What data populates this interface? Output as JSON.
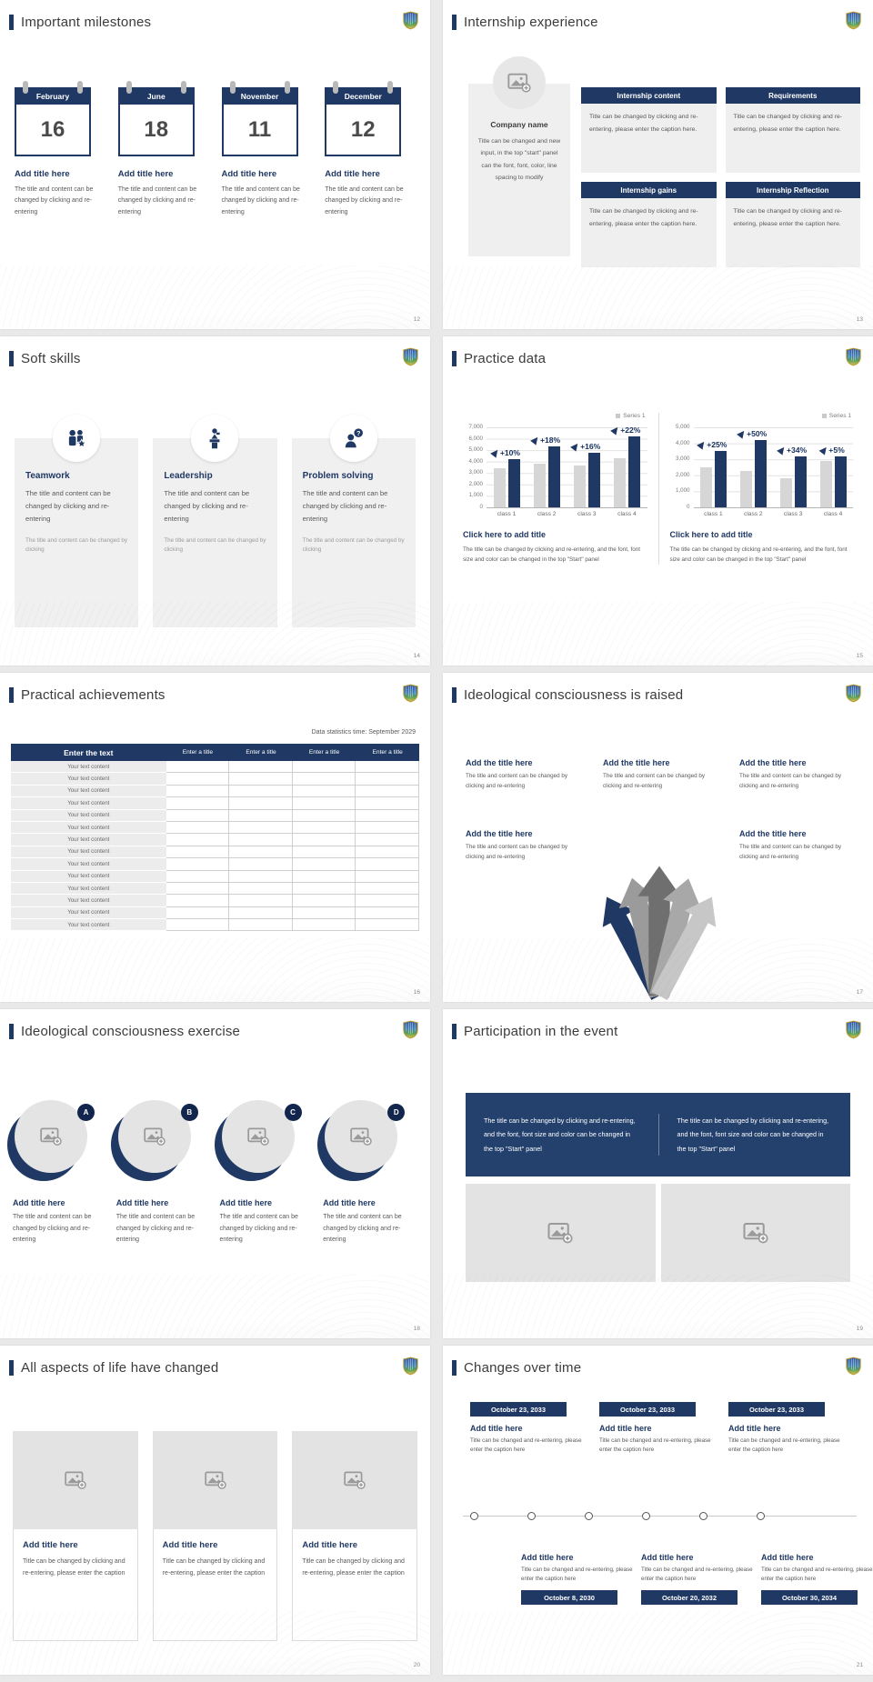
{
  "page": {
    "background_color": "#e9e9e9",
    "slide_background": "#ffffff",
    "accent_navy": "#1f3864",
    "body_text_gray": "#595959",
    "bar_gray_color": "#d6d6d6"
  },
  "logo": {
    "name": "university-crest",
    "colors": [
      "#33539e",
      "#58a05a",
      "#e3c54e"
    ]
  },
  "slides": [
    {
      "title": "Important milestones",
      "page_number": "12",
      "calendars": [
        {
          "month": "February",
          "day": "16",
          "heading": "Add title here",
          "body": "The title and content can be changed by clicking and re-entering"
        },
        {
          "month": "June",
          "day": "18",
          "heading": "Add title here",
          "body": "The title and content can be changed by clicking and re-entering"
        },
        {
          "month": "November",
          "day": "11",
          "heading": "Add title here",
          "body": "The title and content can be changed by clicking and re-entering"
        },
        {
          "month": "December",
          "day": "12",
          "heading": "Add title here",
          "body": "The title and content can be changed by clicking and re-entering"
        }
      ]
    },
    {
      "title": "Internship experience",
      "page_number": "13",
      "company": {
        "name": "Company name",
        "body": "Title can be changed and new input, in the top \"start\" panel can the font, font, color, line spacing to modify"
      },
      "boxes": [
        {
          "header": "Internship content",
          "body": "Title can be changed by clicking and re-entering, please enter the caption here."
        },
        {
          "header": "Requirements",
          "body": "Title can be changed by clicking and re-entering, please enter the caption here."
        },
        {
          "header": "Internship gains",
          "body": "Title can be changed by clicking and re-entering, please enter the caption here."
        },
        {
          "header": "Internship Reflection",
          "body": "Title can be changed by clicking and re-entering, please enter the caption here."
        }
      ]
    },
    {
      "title": "Soft skills",
      "page_number": "14",
      "cards": [
        {
          "icon": "teamwork-icon",
          "heading": "Teamwork",
          "body": "The title and content can be changed by clicking and re-entering",
          "footer": "The title and content can be changed by clicking"
        },
        {
          "icon": "leadership-icon",
          "heading": "Leadership",
          "body": "The title and content can be changed by clicking and re-entering",
          "footer": "The title and content can be changed by clicking"
        },
        {
          "icon": "problem-solving-icon",
          "heading": "Problem solving",
          "body": "The title and content can be changed by clicking and re-entering",
          "footer": "The title and content can be changed by clicking"
        }
      ]
    },
    {
      "title": "Practice data",
      "page_number": "15",
      "charts": [
        {
          "caption_title": "Click here to add title",
          "caption_body": "The title can be changed by clicking and re-entering, and the font, font size and color can be changed in the top \"Start\" panel"
        },
        {
          "caption_title": "Click here to add title",
          "caption_body": "The title can be changed by clicking and re-entering, and the font, font size and color can be changed in the top \"Start\" panel"
        }
      ]
    },
    {
      "title": "Practical achievements",
      "page_number": "16",
      "statistics_caption": "Data statistics time: September 2029",
      "table": {
        "headers": [
          "Enter the text",
          "Enter a title",
          "Enter a title",
          "Enter a title",
          "Enter a title"
        ],
        "rows": [
          "Your text content",
          "Your text content",
          "Your text content",
          "Your text content",
          "Your text content",
          "Your text content",
          "Your text content",
          "Your text content",
          "Your text content",
          "Your text content",
          "Your text content",
          "Your text content",
          "Your text content",
          "Your text content"
        ]
      }
    },
    {
      "title": "Ideological consciousness is raised",
      "page_number": "17",
      "blocks": [
        {
          "heading": "Add the title here",
          "body": "The title and content can be changed by clicking and re-entering"
        },
        {
          "heading": "Add the title here",
          "body": "The title and content can be changed by clicking and re-entering"
        },
        {
          "heading": "Add the title here",
          "body": "The title and content can be changed by clicking and re-entering"
        },
        {
          "heading": "Add the title here",
          "body": "The title and content can be changed by clicking and re-entering"
        },
        {
          "heading": "Add the title here",
          "body": "The title and content can be changed by clicking and re-entering"
        }
      ]
    },
    {
      "title": "Ideological consciousness exercise",
      "page_number": "18",
      "items": [
        {
          "badge": "A",
          "heading": "Add title here",
          "body": "The title and content can be changed by clicking and re-entering"
        },
        {
          "badge": "B",
          "heading": "Add title here",
          "body": "The title and content can be changed by clicking and re-entering"
        },
        {
          "badge": "C",
          "heading": "Add title here",
          "body": "The title and content can be changed by clicking and re-entering"
        },
        {
          "badge": "D",
          "heading": "Add title here",
          "body": "The title and content can be changed by clicking and re-entering"
        }
      ]
    },
    {
      "title": "Participation in the event",
      "page_number": "19",
      "banner": {
        "left": "The title can be changed by clicking and re-entering, and the font, font size and color can be changed in the top \"Start\" panel",
        "right": "The title can be changed by clicking and re-entering, and the font, font size and color can be changed in the top \"Start\" panel"
      }
    },
    {
      "title": "All aspects of life have changed",
      "page_number": "20",
      "cards": [
        {
          "heading": "Add title here",
          "body": "Title can be changed by clicking and re-entering, please enter the caption"
        },
        {
          "heading": "Add title here",
          "body": "Title can be changed by clicking and re-entering, please enter the caption"
        },
        {
          "heading": "Add title here",
          "body": "Title can be changed by clicking and re-entering, please enter the caption"
        }
      ]
    },
    {
      "title": "Changes over time",
      "page_number": "21",
      "top_items": [
        {
          "date": "October 23, 2033",
          "heading": "Add title here",
          "body": "Title can be changed and re-entering, please enter the caption here"
        },
        {
          "date": "October 23, 2033",
          "heading": "Add title here",
          "body": "Title can be changed and re-entering, please enter the caption here"
        },
        {
          "date": "October 23, 2033",
          "heading": "Add title here",
          "body": "Title can be changed and re-entering, please enter the caption here"
        }
      ],
      "bottom_items": [
        {
          "date": "October 8, 2030",
          "heading": "Add title here",
          "body": "Title can be changed and re-entering, please enter the caption here"
        },
        {
          "date": "October 20, 2032",
          "heading": "Add title here",
          "body": "Title can be changed and re-entering, please enter the caption here"
        },
        {
          "date": "October 30, 2034",
          "heading": "Add title here",
          "body": "Title can be changed and re-entering, please enter the caption here"
        }
      ]
    }
  ],
  "chart_data": [
    {
      "type": "bar",
      "categories": [
        "class 1",
        "class 2",
        "class 3",
        "class 4"
      ],
      "series": [
        {
          "name": "gray series",
          "values": [
            3400,
            3800,
            3700,
            4300
          ]
        },
        {
          "name": "Series 1",
          "values": [
            4200,
            5300,
            4800,
            6200
          ]
        }
      ],
      "annotations": [
        "+10%",
        "+18%",
        "+16%",
        "+22%"
      ],
      "legend": [
        "Series 1"
      ],
      "legend_position": "top-right",
      "ylim": [
        0,
        7000
      ],
      "ytick_step": 1000,
      "grid": true,
      "title": "",
      "xlabel": "",
      "ylabel": ""
    },
    {
      "type": "bar",
      "categories": [
        "class 1",
        "class 2",
        "class 3",
        "class 4"
      ],
      "series": [
        {
          "name": "gray series",
          "values": [
            2500,
            2300,
            1800,
            2900
          ]
        },
        {
          "name": "Series 1",
          "values": [
            3500,
            4200,
            3200,
            3200
          ]
        }
      ],
      "annotations": [
        "+25%",
        "+50%",
        "+34%",
        "+5%"
      ],
      "legend": [
        "Series 1"
      ],
      "legend_position": "top-right",
      "ylim": [
        0,
        5000
      ],
      "ytick_step": 1000,
      "grid": true,
      "title": "",
      "xlabel": "",
      "ylabel": ""
    }
  ]
}
